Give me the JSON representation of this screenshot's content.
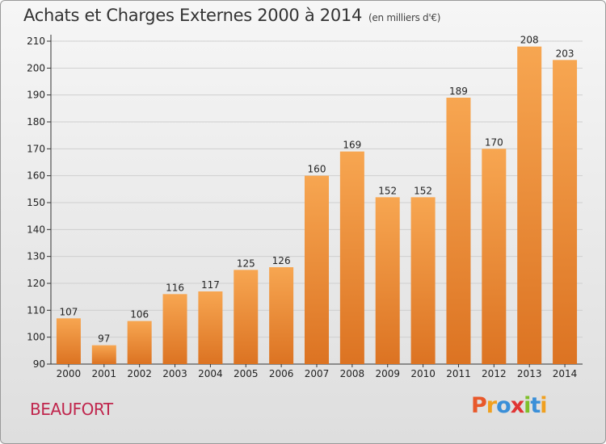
{
  "header": {
    "title": "Achats et Charges Externes 2000 à 2014",
    "unit": "(en milliers d'€)"
  },
  "footer": {
    "town": "BEAUFORT",
    "logo": "Proxiti"
  },
  "colors": {
    "bar_light": "#f7a651",
    "bar_dark": "#dc7322",
    "grid": "#cfcfcf",
    "town": "#c0264d",
    "logo_letters": [
      "#e8582a",
      "#f0a020",
      "#3a8fd8",
      "#e03434",
      "#7fbf2a",
      "#3a8fd8",
      "#f0a020"
    ]
  },
  "chart_data": {
    "type": "bar",
    "title": "Achats et Charges Externes 2000 à 2014",
    "subtitle": "(en milliers d'€)",
    "xlabel": "",
    "ylabel": "",
    "categories": [
      "2000",
      "2001",
      "2002",
      "2003",
      "2004",
      "2005",
      "2006",
      "2007",
      "2008",
      "2009",
      "2010",
      "2011",
      "2012",
      "2013",
      "2014"
    ],
    "values": [
      107,
      97,
      106,
      116,
      117,
      125,
      126,
      160,
      169,
      152,
      152,
      189,
      170,
      208,
      203
    ],
    "ylim": [
      90,
      210
    ],
    "yticks": [
      90,
      100,
      110,
      120,
      130,
      140,
      150,
      160,
      170,
      180,
      190,
      200,
      210
    ],
    "grid": true,
    "data_labels": true
  }
}
